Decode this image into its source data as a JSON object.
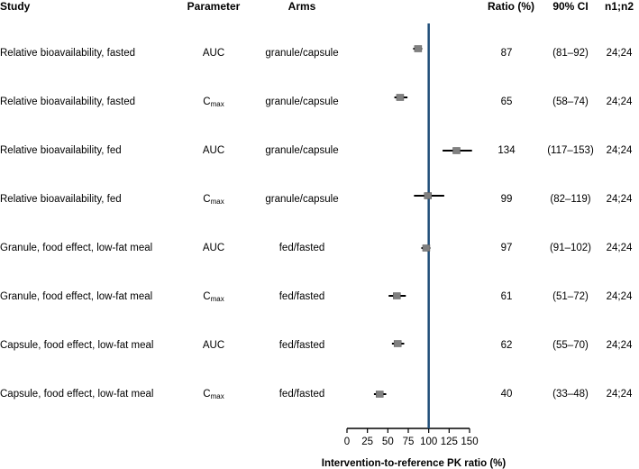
{
  "headers": {
    "study": "Study",
    "parameter": "Parameter",
    "arms": "Arms",
    "ratio": "Ratio (%)",
    "ci": "90% CI",
    "n": "n1;n2"
  },
  "rows": [
    {
      "study": "Relative bioavailability, fasted",
      "param_main": "AUC",
      "param_sub": "",
      "arms": "granule/capsule",
      "ratio": "87",
      "ci": "(81–92)",
      "n": "24;24"
    },
    {
      "study": "Relative bioavailability, fasted",
      "param_main": "C",
      "param_sub": "max",
      "arms": "granule/capsule",
      "ratio": "65",
      "ci": "(58–74)",
      "n": "24;24"
    },
    {
      "study": "Relative bioavailability, fed",
      "param_main": "AUC",
      "param_sub": "",
      "arms": "granule/capsule",
      "ratio": "134",
      "ci": "(117–153)",
      "n": "24;24"
    },
    {
      "study": "Relative bioavailability, fed",
      "param_main": "C",
      "param_sub": "max",
      "arms": "granule/capsule",
      "ratio": "99",
      "ci": "(82–119)",
      "n": "24;24"
    },
    {
      "study": "Granule, food effect, low-fat meal",
      "param_main": "AUC",
      "param_sub": "",
      "arms": "fed/fasted",
      "ratio": "97",
      "ci": "(91–102)",
      "n": "24;24"
    },
    {
      "study": "Granule, food effect, low-fat meal",
      "param_main": "C",
      "param_sub": "max",
      "arms": "fed/fasted",
      "ratio": "61",
      "ci": "(51–72)",
      "n": "24;24"
    },
    {
      "study": "Capsule, food effect, low-fat meal",
      "param_main": "AUC",
      "param_sub": "",
      "arms": "fed/fasted",
      "ratio": "62",
      "ci": "(55–70)",
      "n": "24;24"
    },
    {
      "study": "Capsule, food effect, low-fat meal",
      "param_main": "C",
      "param_sub": "max",
      "arms": "fed/fasted",
      "ratio": "40",
      "ci": "(33–48)",
      "n": "24;24"
    }
  ],
  "chart_data": {
    "type": "forest",
    "xlabel": "Intervention-to-reference PK ratio (%)",
    "xlim": [
      0,
      150
    ],
    "xticks": [
      0,
      25,
      50,
      75,
      100,
      125,
      150
    ],
    "reference_line": 100,
    "reference_color": "#1f4e79",
    "marker_color": "#808080",
    "estimates": [
      87,
      65,
      134,
      99,
      97,
      61,
      62,
      40
    ],
    "ci_low": [
      81,
      58,
      117,
      82,
      91,
      51,
      55,
      33
    ],
    "ci_high": [
      92,
      74,
      153,
      119,
      102,
      72,
      70,
      48
    ]
  }
}
